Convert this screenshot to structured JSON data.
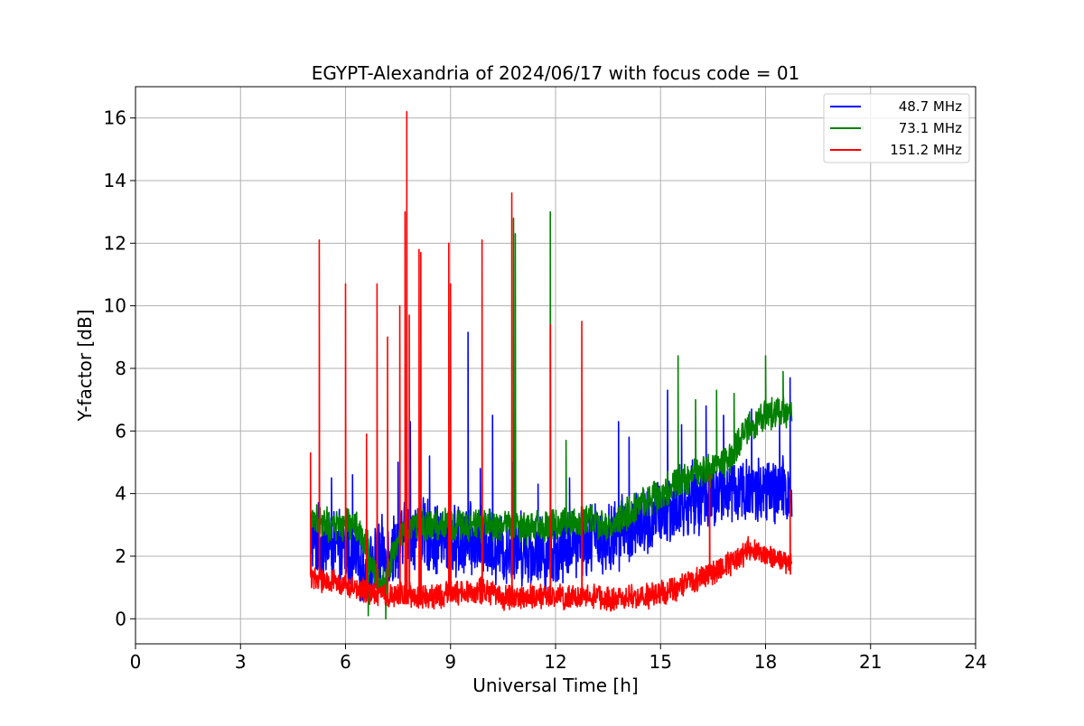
{
  "chart_data": {
    "type": "line",
    "title": "EGYPT-Alexandria of 2024/06/17 with focus code = 01",
    "xlabel": "Universal Time [h]",
    "ylabel": "Y-factor [dB]",
    "xlim": [
      0,
      24
    ],
    "ylim": [
      -0.8,
      17
    ],
    "xticks": [
      0,
      3,
      6,
      9,
      12,
      15,
      18,
      21,
      24
    ],
    "yticks": [
      0,
      2,
      4,
      6,
      8,
      10,
      12,
      14,
      16
    ],
    "grid": true,
    "legend_position": "top-right",
    "series": [
      {
        "name": "  48.7 MHz",
        "color": "#0000ff",
        "base": [
          [
            5.0,
            2.6
          ],
          [
            5.5,
            2.3
          ],
          [
            6.0,
            2.2
          ],
          [
            6.3,
            1.8
          ],
          [
            6.6,
            1.4
          ],
          [
            7.0,
            2.0
          ],
          [
            7.5,
            2.4
          ],
          [
            8.0,
            2.8
          ],
          [
            8.5,
            2.6
          ],
          [
            9.0,
            2.4
          ],
          [
            9.5,
            2.5
          ],
          [
            10.0,
            2.4
          ],
          [
            10.5,
            2.2
          ],
          [
            11.0,
            2.3
          ],
          [
            11.5,
            2.1
          ],
          [
            12.0,
            2.1
          ],
          [
            12.5,
            2.5
          ],
          [
            13.0,
            2.6
          ],
          [
            13.5,
            2.5
          ],
          [
            14.0,
            2.9
          ],
          [
            14.5,
            3.0
          ],
          [
            15.0,
            3.3
          ],
          [
            15.5,
            3.6
          ],
          [
            16.0,
            3.9
          ],
          [
            16.5,
            4.0
          ],
          [
            17.0,
            4.1
          ],
          [
            17.5,
            4.1
          ],
          [
            18.0,
            4.0
          ],
          [
            18.5,
            4.0
          ],
          [
            18.75,
            4.1
          ]
        ],
        "spread": 1.3,
        "spikes": [
          [
            5.6,
            4.5
          ],
          [
            6.2,
            4.6
          ],
          [
            7.5,
            5.0
          ],
          [
            7.85,
            6.3
          ],
          [
            8.4,
            5.2
          ],
          [
            8.95,
            4.9
          ],
          [
            9.5,
            9.15
          ],
          [
            9.85,
            4.8
          ],
          [
            10.2,
            6.5
          ],
          [
            10.8,
            5.0
          ],
          [
            11.5,
            4.3
          ],
          [
            12.4,
            4.5
          ],
          [
            13.8,
            6.3
          ],
          [
            14.1,
            5.8
          ],
          [
            15.2,
            7.3
          ],
          [
            15.6,
            6.2
          ],
          [
            16.3,
            6.8
          ],
          [
            16.8,
            6.5
          ],
          [
            17.6,
            6.7
          ],
          [
            18.4,
            6.5
          ],
          [
            18.7,
            7.7
          ]
        ]
      },
      {
        "name": "  73.1 MHz",
        "color": "#008000",
        "base": [
          [
            5.0,
            3.2
          ],
          [
            5.5,
            3.0
          ],
          [
            6.0,
            3.0
          ],
          [
            6.3,
            2.9
          ],
          [
            6.6,
            2.4
          ],
          [
            6.8,
            1.6
          ],
          [
            7.0,
            1.0
          ],
          [
            7.2,
            1.5
          ],
          [
            7.5,
            2.6
          ],
          [
            8.0,
            3.0
          ],
          [
            9.0,
            3.0
          ],
          [
            10.0,
            3.0
          ],
          [
            11.0,
            2.9
          ],
          [
            12.0,
            3.0
          ],
          [
            13.0,
            3.1
          ],
          [
            13.5,
            3.0
          ],
          [
            14.0,
            3.3
          ],
          [
            14.5,
            3.7
          ],
          [
            15.0,
            4.0
          ],
          [
            15.5,
            4.4
          ],
          [
            16.0,
            4.6
          ],
          [
            16.5,
            4.8
          ],
          [
            17.0,
            5.2
          ],
          [
            17.5,
            6.1
          ],
          [
            18.0,
            6.5
          ],
          [
            18.5,
            6.7
          ],
          [
            18.75,
            6.5
          ]
        ],
        "spread": 0.6,
        "spikes": [
          [
            6.65,
            0.1
          ],
          [
            7.15,
            0.0
          ],
          [
            10.8,
            12.8
          ],
          [
            10.85,
            12.3
          ],
          [
            11.85,
            13.0
          ],
          [
            12.3,
            5.7
          ],
          [
            15.5,
            8.4
          ],
          [
            16.0,
            7.0
          ],
          [
            16.6,
            7.3
          ],
          [
            17.1,
            7.2
          ],
          [
            18.0,
            8.4
          ],
          [
            18.5,
            7.9
          ]
        ]
      },
      {
        "name": "151.2 MHz",
        "color": "#ff0000",
        "base": [
          [
            5.0,
            1.4
          ],
          [
            5.5,
            1.2
          ],
          [
            6.0,
            1.1
          ],
          [
            6.5,
            0.9
          ],
          [
            7.0,
            0.8
          ],
          [
            7.5,
            0.8
          ],
          [
            8.0,
            0.7
          ],
          [
            8.5,
            0.7
          ],
          [
            9.0,
            0.8
          ],
          [
            9.5,
            0.9
          ],
          [
            10.0,
            0.9
          ],
          [
            10.5,
            0.7
          ],
          [
            11.0,
            0.7
          ],
          [
            11.5,
            0.7
          ],
          [
            12.0,
            0.7
          ],
          [
            12.5,
            0.7
          ],
          [
            13.0,
            0.7
          ],
          [
            13.5,
            0.6
          ],
          [
            14.0,
            0.7
          ],
          [
            14.5,
            0.7
          ],
          [
            15.0,
            0.8
          ],
          [
            15.5,
            1.0
          ],
          [
            16.0,
            1.2
          ],
          [
            16.5,
            1.5
          ],
          [
            17.0,
            1.8
          ],
          [
            17.5,
            2.2
          ],
          [
            18.0,
            2.0
          ],
          [
            18.5,
            1.9
          ],
          [
            18.75,
            1.8
          ]
        ],
        "spread": 0.45,
        "spikes": [
          [
            5.0,
            5.3
          ],
          [
            5.25,
            12.1
          ],
          [
            6.0,
            10.7
          ],
          [
            6.6,
            5.9
          ],
          [
            6.9,
            10.7
          ],
          [
            7.2,
            9.0
          ],
          [
            7.55,
            10.0
          ],
          [
            7.7,
            13.0
          ],
          [
            7.75,
            16.2
          ],
          [
            7.82,
            9.7
          ],
          [
            8.1,
            11.8
          ],
          [
            8.15,
            11.7
          ],
          [
            8.95,
            12.0
          ],
          [
            9.0,
            10.7
          ],
          [
            9.9,
            12.1
          ],
          [
            10.75,
            13.6
          ],
          [
            11.85,
            9.4
          ],
          [
            12.75,
            9.5
          ],
          [
            16.4,
            4.6
          ],
          [
            18.7,
            4.1
          ]
        ]
      }
    ]
  }
}
